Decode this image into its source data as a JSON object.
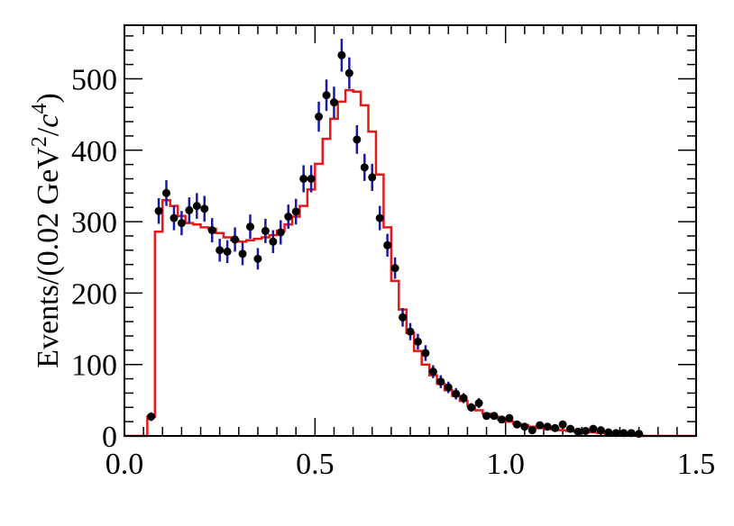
{
  "chart_data": {
    "type": "scatter",
    "ylabel": {
      "prefix": "Events/(0.02 GeV",
      "sup1": "2",
      "mid": "/",
      "italic": "c",
      "sup2": "4",
      "suffix": ")"
    },
    "xlabel": "",
    "xlim": [
      0.0,
      1.5
    ],
    "ylim": [
      0,
      575
    ],
    "x_ticks": [
      "0.0",
      "0.5",
      "1.0",
      "1.5"
    ],
    "y_ticks": [
      "0",
      "100",
      "200",
      "300",
      "400",
      "500"
    ],
    "grid": false,
    "legend": "none",
    "series": [
      {
        "kind": "points_with_errors",
        "marker_color": "#000000",
        "error_color": "#1a1aa6",
        "x": [
          0.07,
          0.09,
          0.11,
          0.13,
          0.15,
          0.17,
          0.19,
          0.21,
          0.23,
          0.25,
          0.27,
          0.29,
          0.31,
          0.33,
          0.35,
          0.37,
          0.39,
          0.41,
          0.43,
          0.45,
          0.47,
          0.49,
          0.51,
          0.53,
          0.55,
          0.57,
          0.59,
          0.61,
          0.63,
          0.65,
          0.67,
          0.69,
          0.71,
          0.73,
          0.75,
          0.77,
          0.79,
          0.81,
          0.83,
          0.85,
          0.87,
          0.89,
          0.91,
          0.93,
          0.95,
          0.97,
          0.99,
          1.01,
          1.03,
          1.05,
          1.07,
          1.09,
          1.11,
          1.13,
          1.15,
          1.17,
          1.19,
          1.21,
          1.23,
          1.25,
          1.27,
          1.29,
          1.31,
          1.33,
          1.35
        ],
        "y": [
          27,
          315,
          340,
          305,
          298,
          316,
          322,
          318,
          288,
          260,
          258,
          275,
          255,
          293,
          248,
          287,
          272,
          285,
          307,
          314,
          360,
          360,
          447,
          477,
          467,
          533,
          508,
          415,
          376,
          362,
          305,
          267,
          235,
          166,
          146,
          132,
          116,
          90,
          76,
          68,
          59,
          53,
          40,
          46,
          28,
          28,
          23,
          25,
          16,
          13,
          8,
          15,
          13,
          11,
          16,
          10,
          6,
          7,
          10,
          8,
          5,
          4,
          4,
          4,
          3
        ],
        "yerr": [
          6,
          18,
          18,
          17,
          17,
          18,
          18,
          18,
          17,
          16,
          16,
          17,
          16,
          17,
          15,
          17,
          16,
          17,
          17,
          18,
          19,
          19,
          21,
          22,
          22,
          23,
          22,
          20,
          19,
          19,
          17,
          16,
          15,
          13,
          12,
          11,
          11,
          9,
          9,
          8,
          8,
          7,
          6,
          7,
          5,
          5,
          5,
          5,
          4,
          4,
          3,
          4,
          4,
          3,
          4,
          3,
          2,
          3,
          3,
          3,
          2,
          2,
          2,
          2,
          2
        ]
      },
      {
        "kind": "step",
        "color": "#e41a1a",
        "edges": [
          0.0,
          0.06,
          0.08,
          0.1,
          0.12,
          0.14,
          0.16,
          0.18,
          0.2,
          0.22,
          0.24,
          0.26,
          0.28,
          0.3,
          0.32,
          0.34,
          0.36,
          0.38,
          0.4,
          0.42,
          0.44,
          0.46,
          0.48,
          0.5,
          0.52,
          0.54,
          0.56,
          0.58,
          0.6,
          0.62,
          0.64,
          0.66,
          0.68,
          0.7,
          0.72,
          0.74,
          0.76,
          0.78,
          0.8,
          0.82,
          0.84,
          0.86,
          0.88,
          0.9,
          0.92,
          0.94,
          0.96,
          0.98,
          1.0,
          1.02,
          1.04,
          1.06,
          1.08,
          1.1,
          1.12,
          1.14,
          1.16,
          1.18,
          1.2,
          1.22,
          1.24,
          1.26,
          1.28,
          1.3,
          1.32,
          1.34,
          1.36,
          1.5
        ],
        "values": [
          0,
          27,
          286,
          330,
          322,
          308,
          298,
          296,
          292,
          290,
          284,
          278,
          274,
          272,
          274,
          276,
          278,
          281,
          287,
          296,
          307,
          322,
          345,
          381,
          416,
          444,
          468,
          484,
          482,
          463,
          426,
          366,
          292,
          217,
          177,
          144,
          119,
          100,
          85,
          73,
          64,
          56,
          49,
          42,
          36,
          31,
          27,
          23,
          20,
          17,
          15,
          13,
          11,
          10,
          9,
          8,
          7,
          6,
          5,
          5,
          4,
          3,
          3,
          2,
          2,
          1,
          0
        ]
      }
    ]
  }
}
